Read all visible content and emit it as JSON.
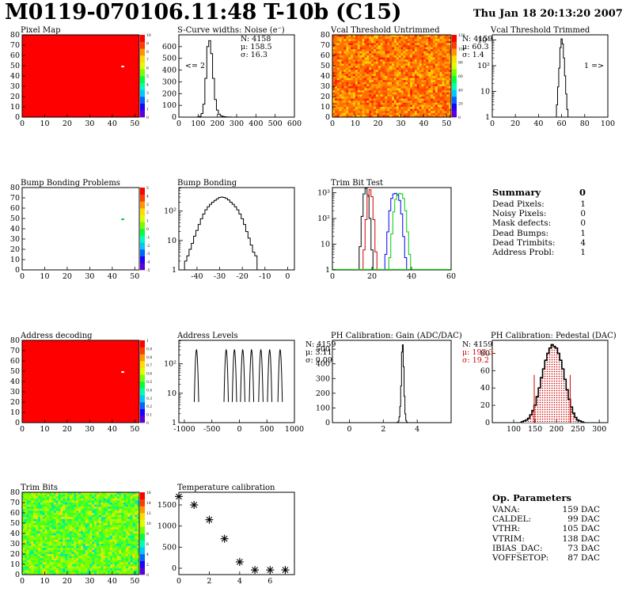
{
  "header": {
    "title": "M0119-070106.11:48 T-10b (C15)",
    "datetime": "Thu Jan 18 20:13:20 2007"
  },
  "colors": {
    "rainbow": [
      "#5a00d8",
      "#1e00ff",
      "#0064ff",
      "#00c8ff",
      "#00ffb4",
      "#00ff3c",
      "#78ff00",
      "#dcff00",
      "#ffdc00",
      "#ff9600",
      "#ff3c00",
      "#ff0000"
    ],
    "red_fill": "#ff0000",
    "gain_border": "#000000",
    "trim_black": "#000000",
    "trim_red": "#cc0000",
    "trim_blue": "#0000ff",
    "trim_green": "#00cc00",
    "pedestal_red": "#cc0000"
  },
  "chart_data": [
    {
      "id": "pixelmap",
      "type": "heatmap",
      "title": "Pixel Map",
      "x_ticks": [
        "0",
        "10",
        "20",
        "30",
        "40",
        "50"
      ],
      "y_ticks": [
        "0",
        "10",
        "20",
        "30",
        "40",
        "50",
        "60",
        "70",
        "80"
      ],
      "xlim": [
        0,
        52
      ],
      "ylim": [
        0,
        80
      ],
      "fill": "uniform",
      "hot_pixel": [
        44,
        49
      ],
      "z_ticks": [
        "0",
        "1",
        "2",
        "3",
        "4",
        "5",
        "6",
        "7",
        "8",
        "9",
        "10"
      ],
      "zlim": [
        0,
        10
      ]
    },
    {
      "id": "scurve",
      "type": "histogram",
      "title": "S-Curve widths: Noise (e⁻)",
      "x_ticks": [
        "0",
        "100",
        "200",
        "300",
        "400",
        "500",
        "600"
      ],
      "xlim": [
        0,
        600
      ],
      "y_ticks": [
        "0",
        "100",
        "200",
        "300",
        "400",
        "500",
        "600"
      ],
      "ylim": [
        0,
        700
      ],
      "stats": [
        "N: 4158",
        "μ: 158.5",
        "σ: 16.3"
      ],
      "annotation": "<= 2",
      "x": [
        90,
        100,
        110,
        120,
        130,
        140,
        150,
        160,
        170,
        180,
        190,
        200,
        210,
        220,
        230,
        240,
        250,
        260,
        270,
        280,
        290
      ],
      "values": [
        0,
        2,
        6,
        30,
        110,
        330,
        600,
        650,
        540,
        330,
        150,
        60,
        25,
        12,
        6,
        3,
        2,
        1,
        1,
        0,
        0
      ]
    },
    {
      "id": "vcal_untrimmed",
      "type": "heatmap",
      "title": "Vcal Threshold Untrimmed",
      "x_ticks": [
        "0",
        "10",
        "20",
        "30",
        "40",
        "50"
      ],
      "y_ticks": [
        "0",
        "10",
        "20",
        "30",
        "40",
        "50",
        "60",
        "70",
        "80"
      ],
      "xlim": [
        0,
        52
      ],
      "ylim": [
        0,
        80
      ],
      "fill": "noise",
      "z_ticks": [
        "0",
        "20",
        "40",
        "60",
        "80",
        "100",
        "120"
      ],
      "zlim": [
        0,
        130
      ]
    },
    {
      "id": "vcal_trimmed",
      "type": "histogram",
      "title": "Vcal Threshold Trimmed",
      "log_y": true,
      "x_ticks": [
        "0",
        "20",
        "40",
        "60",
        "80",
        "100"
      ],
      "xlim": [
        0,
        100
      ],
      "y_ticks": [
        "1",
        "10",
        "10²",
        "10³"
      ],
      "ylim_log": [
        0,
        3.2
      ],
      "stats": [
        "N: 4159",
        "μ: 60.3",
        "σ:  1.4"
      ],
      "annotation": "1 =>",
      "x": [
        55,
        56,
        57,
        58,
        59,
        60,
        61,
        62,
        63,
        64,
        65,
        66,
        72,
        73
      ],
      "values": [
        1,
        3,
        15,
        80,
        500,
        1100,
        700,
        200,
        40,
        8,
        2,
        1,
        1,
        0
      ]
    },
    {
      "id": "bump_problems",
      "type": "heatmap",
      "title": "Bump Bonding Problems",
      "x_ticks": [
        "0",
        "10",
        "20",
        "30",
        "40",
        "50"
      ],
      "y_ticks": [
        "0",
        "10",
        "20",
        "30",
        "40",
        "50",
        "60",
        "70",
        "80"
      ],
      "xlim": [
        0,
        52
      ],
      "ylim": [
        0,
        80
      ],
      "fill": "empty",
      "hot_pixel": [
        44,
        49
      ],
      "z_ticks": [
        "-5",
        "-4",
        "-3",
        "-2",
        "-1",
        "0",
        "1",
        "2",
        "3",
        "4",
        "5"
      ],
      "zlim": [
        -5,
        5
      ]
    },
    {
      "id": "bump_bonding",
      "type": "histogram",
      "title": "Bump Bonding",
      "log_y": true,
      "x_ticks": [
        "-40",
        "-30",
        "-20",
        "-10",
        "0"
      ],
      "xlim": [
        -48,
        3
      ],
      "y_ticks": [
        "1",
        "10",
        "10²"
      ],
      "ylim_log": [
        0,
        2.8
      ],
      "x": [
        -46,
        -45,
        -44,
        -43,
        -42,
        -41,
        -40,
        -39,
        -38,
        -37,
        -36,
        -35,
        -34,
        -33,
        -32,
        -31,
        -30,
        -29,
        -28,
        -27,
        -26,
        -25,
        -24,
        -23,
        -22,
        -21,
        -20,
        -19,
        -18,
        -17,
        -16,
        -15,
        -14,
        -13,
        -12,
        -11,
        -10,
        0
      ],
      "values": [
        1,
        2,
        3,
        5,
        8,
        14,
        22,
        35,
        55,
        80,
        110,
        140,
        170,
        200,
        230,
        260,
        290,
        300,
        290,
        270,
        240,
        200,
        170,
        140,
        110,
        80,
        55,
        35,
        20,
        12,
        7,
        4,
        3,
        1,
        0,
        0,
        0,
        1
      ]
    },
    {
      "id": "trimbit_test",
      "type": "histogram",
      "title": "Trim Bit Test",
      "log_y": true,
      "x_ticks": [
        "0",
        "20",
        "40",
        "60"
      ],
      "xlim": [
        0,
        60
      ],
      "y_ticks": [
        "1",
        "10",
        "10²",
        "10³"
      ],
      "ylim_log": [
        0,
        3.2
      ],
      "series": [
        {
          "name": "trim0",
          "color": "trim_black",
          "x": [
            13,
            14,
            15,
            16,
            17,
            18,
            19,
            20,
            21
          ],
          "values": [
            1,
            8,
            120,
            900,
            1500,
            800,
            100,
            6,
            1
          ]
        },
        {
          "name": "trim1",
          "color": "trim_red",
          "x": [
            15,
            16,
            17,
            18,
            19,
            20,
            21,
            22,
            23
          ],
          "values": [
            1,
            6,
            90,
            700,
            1300,
            700,
            90,
            5,
            1
          ]
        },
        {
          "name": "trim2",
          "color": "trim_blue",
          "x": [
            26,
            27,
            28,
            29,
            30,
            31,
            32,
            33,
            34,
            35,
            36,
            37,
            38
          ],
          "values": [
            1,
            4,
            30,
            200,
            600,
            900,
            950,
            800,
            500,
            150,
            20,
            3,
            1
          ]
        },
        {
          "name": "trim3",
          "color": "trim_green",
          "x": [
            28,
            29,
            30,
            31,
            32,
            33,
            34,
            35,
            36,
            37,
            38,
            39,
            40
          ],
          "values": [
            1,
            3,
            25,
            180,
            550,
            850,
            950,
            900,
            600,
            200,
            30,
            4,
            1
          ]
        }
      ]
    },
    {
      "id": "address_decoding",
      "type": "heatmap",
      "title": "Address decoding",
      "x_ticks": [
        "0",
        "10",
        "20",
        "30",
        "40",
        "50"
      ],
      "y_ticks": [
        "0",
        "10",
        "20",
        "30",
        "40",
        "50",
        "60",
        "70",
        "80"
      ],
      "xlim": [
        0,
        52
      ],
      "ylim": [
        0,
        80
      ],
      "fill": "uniform",
      "hot_pixel": [
        44,
        49
      ],
      "z_ticks": [
        "0",
        "0.1",
        "0.2",
        "0.3",
        "0.4",
        "0.5",
        "0.6",
        "0.7",
        "0.8",
        "0.9",
        "1"
      ],
      "zlim": [
        0,
        1
      ]
    },
    {
      "id": "address_levels",
      "type": "histogram",
      "title": "Address Levels",
      "log_y": true,
      "x_ticks": [
        "-1000",
        "-500",
        "0",
        "500",
        "1000"
      ],
      "xlim": [
        -1100,
        1000
      ],
      "y_ticks": [
        "1",
        "10",
        "10²"
      ],
      "ylim_log": [
        0,
        2.8
      ],
      "peaks": [
        -780,
        -240,
        -90,
        60,
        220,
        390,
        550,
        740
      ],
      "peak_height": 300
    },
    {
      "id": "ph_gain",
      "type": "histogram",
      "title": "PH Calibration: Gain (ADC/DAC)",
      "x_ticks": [
        "0",
        "2",
        "4"
      ],
      "xlim": [
        -1,
        6
      ],
      "y_ticks": [
        "0",
        "100",
        "200",
        "300",
        "400",
        "500"
      ],
      "ylim": [
        0,
        560
      ],
      "stats": [
        "N: 4159",
        "μ: 3.11",
        "σ: 0.09"
      ],
      "x": [
        2.8,
        2.85,
        2.9,
        2.95,
        3.0,
        3.05,
        3.1,
        3.15,
        3.2,
        3.25,
        3.3,
        3.35,
        3.4
      ],
      "values": [
        1,
        3,
        10,
        40,
        110,
        250,
        480,
        530,
        380,
        180,
        60,
        15,
        3
      ]
    },
    {
      "id": "ph_pedestal",
      "type": "histogram",
      "title": "PH Calibration: Pedestal (DAC)",
      "x_ticks": [
        "100",
        "150",
        "200",
        "250",
        "300"
      ],
      "xlim": [
        50,
        320
      ],
      "y_ticks": [
        "0",
        "20",
        "40",
        "60",
        "80"
      ],
      "ylim": [
        0,
        95
      ],
      "stats": [
        "N: 4159",
        "μ: 193.3",
        "σ: 19.2"
      ],
      "markers": [
        148,
        232
      ],
      "x": [
        120,
        125,
        130,
        135,
        140,
        145,
        150,
        155,
        160,
        165,
        170,
        175,
        180,
        185,
        190,
        195,
        200,
        205,
        210,
        215,
        220,
        225,
        230,
        235,
        240,
        245,
        250,
        255,
        260,
        265
      ],
      "values": [
        1,
        2,
        3,
        5,
        9,
        14,
        20,
        30,
        40,
        52,
        62,
        72,
        80,
        86,
        90,
        88,
        86,
        80,
        72,
        62,
        50,
        38,
        27,
        18,
        11,
        6,
        3,
        2,
        1,
        0
      ]
    },
    {
      "id": "trim_bits",
      "type": "heatmap",
      "title": "Trim Bits",
      "x_ticks": [
        "0",
        "10",
        "20",
        "30",
        "40",
        "50"
      ],
      "y_ticks": [
        "0",
        "10",
        "20",
        "30",
        "40",
        "50",
        "60",
        "70",
        "80"
      ],
      "xlim": [
        0,
        52
      ],
      "ylim": [
        0,
        80
      ],
      "fill": "trimnoise",
      "z_ticks": [
        "0",
        "2",
        "4",
        "6",
        "8",
        "10",
        "12",
        "14",
        "16"
      ],
      "zlim": [
        0,
        16
      ]
    },
    {
      "id": "temperature",
      "type": "scatter",
      "title": "Temperature calibration",
      "x_ticks": [
        "0",
        "2",
        "4",
        "6"
      ],
      "xlim": [
        0,
        7.6
      ],
      "y_ticks": [
        "0",
        "500",
        "1000",
        "1500"
      ],
      "ylim": [
        -150,
        1800
      ],
      "x": [
        0,
        1,
        2,
        3,
        4,
        5,
        6,
        7
      ],
      "values": [
        1700,
        1500,
        1150,
        700,
        150,
        -40,
        -40,
        -40
      ]
    }
  ],
  "summary": {
    "title": "Summary",
    "total": "0",
    "rows": [
      {
        "label": "Dead Pixels:",
        "value": "1"
      },
      {
        "label": "Noisy Pixels:",
        "value": "0"
      },
      {
        "label": "Mask defects:",
        "value": "0"
      },
      {
        "label": "Dead Bumps:",
        "value": "1"
      },
      {
        "label": "Dead Trimbits:",
        "value": "4"
      },
      {
        "label": "Address Probl:",
        "value": "1"
      }
    ]
  },
  "op_params": {
    "title": "Op. Parameters",
    "rows": [
      {
        "label": "VANA:",
        "value": "159 DAC"
      },
      {
        "label": "CALDEL:",
        "value": " 99 DAC"
      },
      {
        "label": "VTHR:",
        "value": "105 DAC"
      },
      {
        "label": "VTRIM:",
        "value": "138 DAC"
      },
      {
        "label": "IBIAS_DAC:",
        "value": " 73 DAC"
      },
      {
        "label": "VOFFSETOP:",
        "value": " 87 DAC"
      }
    ]
  }
}
